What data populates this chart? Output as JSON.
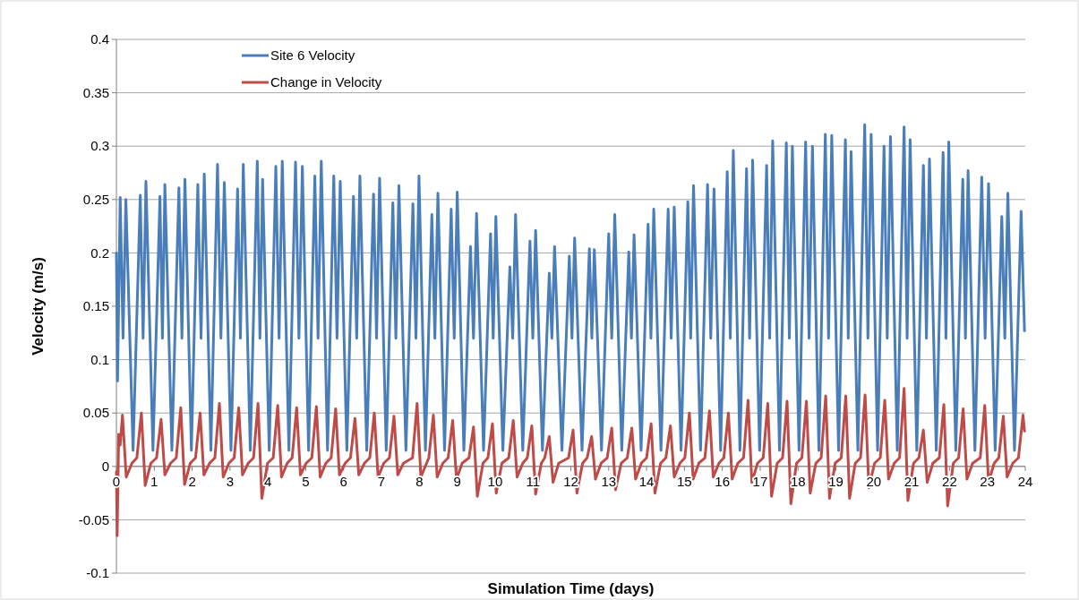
{
  "chart_data": {
    "type": "line",
    "xlabel": "Simulation Time (days)",
    "ylabel": "Velocity (m/s)",
    "xlim": [
      0,
      24
    ],
    "xticks": [
      0,
      1,
      2,
      3,
      4,
      5,
      6,
      7,
      8,
      9,
      10,
      11,
      12,
      13,
      14,
      15,
      16,
      17,
      18,
      19,
      20,
      21,
      22,
      23,
      24
    ],
    "ylim": [
      -0.1,
      0.4
    ],
    "yticks": [
      -0.1,
      -0.05,
      0,
      0.05,
      0.1,
      0.15,
      0.2,
      0.25,
      0.3,
      0.35,
      0.4
    ],
    "grid": "y",
    "legend": "top left",
    "marker": "none",
    "line_style": "solid",
    "series": [
      {
        "name": "Site 6 Velocity",
        "color": "#4a7ebb",
        "x": [
          0,
          0.03,
          0.1,
          0.175,
          0.25,
          0.44,
          0.63,
          0.705,
          0.78,
          0.965,
          1.15,
          1.215,
          1.28,
          1.465,
          1.65,
          1.73,
          1.81,
          1.98,
          2.15,
          2.235,
          2.32,
          2.495,
          2.67,
          2.76,
          2.85,
          3.025,
          3.2,
          3.275,
          3.35,
          3.535,
          3.72,
          3.79,
          3.86,
          4.035,
          4.21,
          4.295,
          4.38,
          4.555,
          4.73,
          4.82,
          4.91,
          5.075,
          5.24,
          5.325,
          5.41,
          5.575,
          5.74,
          5.825,
          5.91,
          6.085,
          6.26,
          6.345,
          6.43,
          6.61,
          6.79,
          6.87,
          6.95,
          7.125,
          7.3,
          7.38,
          7.46,
          7.645,
          7.83,
          7.91,
          7.99,
          8.16,
          8.33,
          8.41,
          8.49,
          8.665,
          8.84,
          8.92,
          9.0,
          9.175,
          9.35,
          9.43,
          9.51,
          9.695,
          9.88,
          9.95,
          10.02,
          10.205,
          10.39,
          10.465,
          10.54,
          10.73,
          10.92,
          10.995,
          11.07,
          11.25,
          11.43,
          11.5,
          11.57,
          11.765,
          11.96,
          12.03,
          12.1,
          12.295,
          12.49,
          12.555,
          12.62,
          12.81,
          13.0,
          13.08,
          13.16,
          13.345,
          13.53,
          13.6,
          13.67,
          13.855,
          14.04,
          14.115,
          14.19,
          14.38,
          14.57,
          14.65,
          14.73,
          14.91,
          15.09,
          15.165,
          15.24,
          15.425,
          15.61,
          15.695,
          15.78,
          15.955,
          16.13,
          16.21,
          16.29,
          16.465,
          16.64,
          16.72,
          16.8,
          16.985,
          17.17,
          17.25,
          17.33,
          17.51,
          17.69,
          17.77,
          17.85,
          18.025,
          18.2,
          18.29,
          18.38,
          18.55,
          18.72,
          18.805,
          18.89,
          19.07,
          19.25,
          19.325,
          19.4,
          19.58,
          19.76,
          19.845,
          19.93,
          20.1,
          20.27,
          20.355,
          20.44,
          20.62,
          20.8,
          20.88,
          20.96,
          21.135,
          21.31,
          21.39,
          21.47,
          21.65,
          21.83,
          21.905,
          21.98,
          22.165,
          22.35,
          22.42,
          22.49,
          22.67,
          22.85,
          22.94,
          23.03,
          23.205,
          23.38,
          23.46,
          23.54,
          23.715,
          23.89,
          23.98
        ],
        "values": [
          0.2,
          0.08,
          0.252,
          0.12,
          0.25,
          0.015,
          0.254,
          0.12,
          0.267,
          0.015,
          0.253,
          0.12,
          0.264,
          0.015,
          0.261,
          0.12,
          0.269,
          0.015,
          0.264,
          0.12,
          0.274,
          0.015,
          0.283,
          0.12,
          0.266,
          0.015,
          0.26,
          0.12,
          0.283,
          0.015,
          0.286,
          0.12,
          0.269,
          0.015,
          0.281,
          0.12,
          0.286,
          0.015,
          0.285,
          0.12,
          0.281,
          0.015,
          0.272,
          0.12,
          0.286,
          0.015,
          0.272,
          0.12,
          0.267,
          0.015,
          0.253,
          0.12,
          0.272,
          0.015,
          0.255,
          0.12,
          0.27,
          0.015,
          0.247,
          0.12,
          0.263,
          0.015,
          0.246,
          0.12,
          0.272,
          0.015,
          0.236,
          0.12,
          0.256,
          0.015,
          0.241,
          0.12,
          0.257,
          0.015,
          0.206,
          0.12,
          0.237,
          0.015,
          0.218,
          0.12,
          0.234,
          0.015,
          0.187,
          0.12,
          0.236,
          0.015,
          0.211,
          0.12,
          0.221,
          0.015,
          0.181,
          0.12,
          0.206,
          0.015,
          0.197,
          0.12,
          0.214,
          0.015,
          0.204,
          0.12,
          0.203,
          0.015,
          0.218,
          0.12,
          0.236,
          0.015,
          0.201,
          0.12,
          0.217,
          0.015,
          0.227,
          0.12,
          0.241,
          0.015,
          0.241,
          0.12,
          0.243,
          0.015,
          0.248,
          0.12,
          0.263,
          0.015,
          0.264,
          0.12,
          0.26,
          0.015,
          0.276,
          0.12,
          0.296,
          0.015,
          0.279,
          0.12,
          0.287,
          0.015,
          0.282,
          0.12,
          0.305,
          0.015,
          0.303,
          0.12,
          0.3,
          0.015,
          0.304,
          0.12,
          0.3,
          0.015,
          0.311,
          0.12,
          0.31,
          0.015,
          0.306,
          0.12,
          0.295,
          0.015,
          0.32,
          0.12,
          0.311,
          0.015,
          0.3,
          0.12,
          0.309,
          0.015,
          0.318,
          0.12,
          0.306,
          0.015,
          0.282,
          0.12,
          0.288,
          0.015,
          0.294,
          0.12,
          0.304,
          0.015,
          0.269,
          0.12,
          0.277,
          0.015,
          0.271,
          0.12,
          0.265,
          0.015,
          0.234,
          0.12,
          0.256,
          0.015,
          0.239,
          0.127
        ]
      },
      {
        "name": "Change in Velocity",
        "color": "#be4b48",
        "x": [
          0,
          0.02,
          0.06,
          0.1,
          0.16,
          0.26,
          0.41,
          0.54,
          0.66,
          0.76,
          0.91,
          1.06,
          1.18,
          1.28,
          1.43,
          1.58,
          1.7,
          1.8,
          1.95,
          2.09,
          2.21,
          2.31,
          2.46,
          2.6,
          2.72,
          2.82,
          2.97,
          3.11,
          3.23,
          3.33,
          3.48,
          3.62,
          3.74,
          3.84,
          3.99,
          4.14,
          4.26,
          4.36,
          4.51,
          4.64,
          4.76,
          4.86,
          5.01,
          5.16,
          5.28,
          5.38,
          5.53,
          5.67,
          5.79,
          5.89,
          6.04,
          6.18,
          6.3,
          6.4,
          6.55,
          6.69,
          6.81,
          6.91,
          7.06,
          7.21,
          7.33,
          7.43,
          7.58,
          7.82,
          7.94,
          8.04,
          8.19,
          8.25,
          8.37,
          8.47,
          8.62,
          8.76,
          8.88,
          8.98,
          9.13,
          9.31,
          9.43,
          9.53,
          9.68,
          9.81,
          9.93,
          10.03,
          10.18,
          10.36,
          10.48,
          10.58,
          10.73,
          10.85,
          10.97,
          11.07,
          11.22,
          11.31,
          11.43,
          11.53,
          11.68,
          11.94,
          12.06,
          12.16,
          12.31,
          12.43,
          12.55,
          12.65,
          12.8,
          12.96,
          13.08,
          13.18,
          13.33,
          13.49,
          13.61,
          13.71,
          13.86,
          14.0,
          14.12,
          14.22,
          14.37,
          14.51,
          14.63,
          14.73,
          14.88,
          15.01,
          15.13,
          15.23,
          15.38,
          15.54,
          15.66,
          15.76,
          15.91,
          16.04,
          16.16,
          16.26,
          16.41,
          16.56,
          16.68,
          16.78,
          16.93,
          17.08,
          17.2,
          17.3,
          17.45,
          17.59,
          17.71,
          17.81,
          17.96,
          18.1,
          18.22,
          18.32,
          18.47,
          18.61,
          18.73,
          18.83,
          18.98,
          19.14,
          19.26,
          19.36,
          19.51,
          19.65,
          19.77,
          19.87,
          20.02,
          20.17,
          20.29,
          20.39,
          20.54,
          20.68,
          20.8,
          20.9,
          21.05,
          21.19,
          21.31,
          21.41,
          21.56,
          21.73,
          21.85,
          21.95,
          22.1,
          22.24,
          22.36,
          22.46,
          22.61,
          22.81,
          22.93,
          23.03,
          23.18,
          23.3,
          23.42,
          23.52,
          23.67,
          23.82,
          23.94,
          23.98
        ],
        "values": [
          -0.005,
          -0.065,
          0.03,
          0.02,
          0.048,
          -0.01,
          0.003,
          0.008,
          0.05,
          -0.018,
          0.003,
          0.008,
          0.044,
          -0.008,
          0.003,
          0.008,
          0.055,
          -0.017,
          0.003,
          0.008,
          0.05,
          -0.008,
          0.003,
          0.008,
          0.059,
          -0.01,
          0.003,
          0.008,
          0.055,
          -0.008,
          0.003,
          0.008,
          0.059,
          -0.03,
          0.003,
          0.008,
          0.057,
          -0.01,
          0.003,
          0.008,
          0.055,
          -0.008,
          0.003,
          0.008,
          0.056,
          -0.01,
          0.003,
          0.008,
          0.054,
          -0.008,
          0.003,
          0.008,
          0.045,
          -0.008,
          0.003,
          0.008,
          0.05,
          -0.01,
          0.003,
          0.008,
          0.047,
          -0.008,
          0.003,
          0.008,
          0.059,
          -0.01,
          0.003,
          0.008,
          0.048,
          -0.01,
          0.003,
          0.008,
          0.043,
          -0.012,
          0.003,
          0.008,
          0.037,
          -0.028,
          0.003,
          0.008,
          0.04,
          -0.025,
          0.003,
          0.008,
          0.043,
          -0.01,
          0.003,
          0.008,
          0.038,
          -0.026,
          0.003,
          0.008,
          0.028,
          -0.015,
          0.003,
          0.008,
          0.034,
          -0.025,
          0.003,
          0.008,
          0.028,
          -0.012,
          0.003,
          0.008,
          0.036,
          -0.022,
          0.003,
          0.008,
          0.036,
          -0.012,
          0.003,
          0.008,
          0.04,
          -0.025,
          0.003,
          0.008,
          0.038,
          -0.01,
          0.003,
          0.008,
          0.05,
          -0.012,
          0.003,
          0.008,
          0.052,
          -0.01,
          0.003,
          0.008,
          0.05,
          -0.012,
          0.003,
          0.008,
          0.062,
          -0.015,
          0.003,
          0.008,
          0.059,
          -0.028,
          0.003,
          0.008,
          0.061,
          -0.035,
          0.003,
          0.008,
          0.061,
          -0.025,
          0.003,
          0.008,
          0.066,
          -0.03,
          0.003,
          0.008,
          0.066,
          -0.03,
          0.003,
          0.008,
          0.067,
          -0.02,
          0.003,
          0.008,
          0.062,
          -0.012,
          0.003,
          0.008,
          0.073,
          -0.032,
          0.003,
          0.008,
          0.034,
          -0.015,
          0.003,
          0.008,
          0.058,
          -0.037,
          0.003,
          0.008,
          0.054,
          -0.012,
          0.003,
          0.008,
          0.057,
          -0.015,
          0.003,
          0.008,
          0.047,
          -0.01,
          0.003,
          0.008,
          0.048,
          0.033
        ]
      }
    ]
  }
}
